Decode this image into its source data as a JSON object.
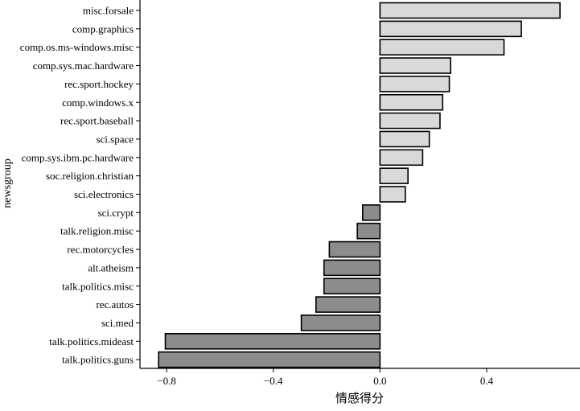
{
  "chart_data": {
    "type": "bar",
    "orientation": "horizontal",
    "ylabel": "newsgroup",
    "xlabel": "情感得分",
    "xlim": [
      -0.9,
      0.75
    ],
    "xticks": [
      -0.8,
      -0.4,
      0.0,
      0.4
    ],
    "xtick_labels": [
      "−0.8",
      "−0.4",
      "0.0",
      "0.4"
    ],
    "grid": false,
    "colors": {
      "positive": "#d9d9d9",
      "negative": "#8c8c8c",
      "edge": "#000000"
    },
    "categories": [
      "misc.forsale",
      "comp.graphics",
      "comp.os.ms-windows.misc",
      "comp.sys.mac.hardware",
      "rec.sport.hockey",
      "comp.windows.x",
      "rec.sport.baseball",
      "sci.space",
      "comp.sys.ibm.pc.hardware",
      "soc.religion.christian",
      "sci.electronics",
      "sci.crypt",
      "talk.religion.misc",
      "rec.motorcycles",
      "alt.atheism",
      "talk.politics.misc",
      "rec.autos",
      "sci.med",
      "talk.politics.mideast",
      "talk.politics.guns"
    ],
    "values": [
      0.675,
      0.53,
      0.465,
      0.265,
      0.26,
      0.235,
      0.225,
      0.185,
      0.16,
      0.105,
      0.095,
      -0.065,
      -0.085,
      -0.19,
      -0.21,
      -0.21,
      -0.24,
      -0.295,
      -0.805,
      -0.83
    ]
  }
}
